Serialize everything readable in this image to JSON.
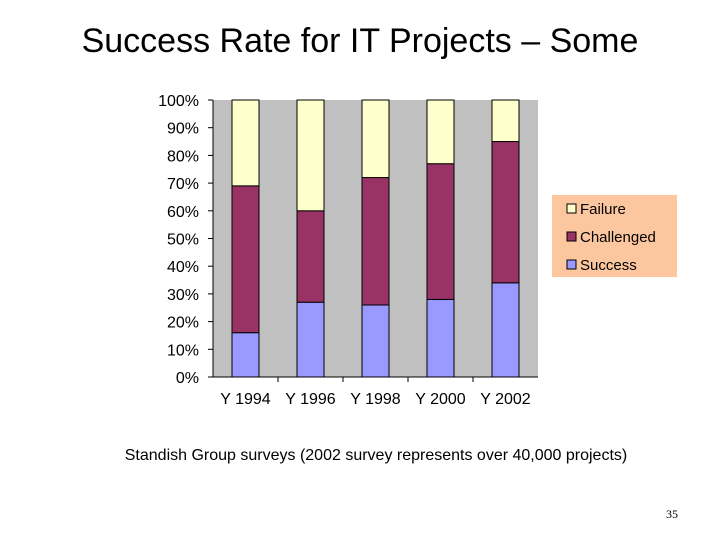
{
  "slide": {
    "title": "Success Rate for IT Projects – Some",
    "caption": "Standish Group surveys (2002 survey represents over 40,000 projects)",
    "page_number": "35"
  },
  "chart_data": {
    "type": "bar",
    "stacked": true,
    "normalized": true,
    "categories": [
      "Y 1994",
      "Y 1996",
      "Y 1998",
      "Y 2000",
      "Y 2002"
    ],
    "series": [
      {
        "name": "Success",
        "values": [
          16,
          27,
          26,
          28,
          34
        ],
        "color": "#9999ff"
      },
      {
        "name": "Challenged",
        "values": [
          53,
          33,
          46,
          49,
          51
        ],
        "color": "#993366"
      },
      {
        "name": "Failure",
        "values": [
          31,
          40,
          28,
          23,
          15
        ],
        "color": "#ffffcc"
      }
    ],
    "y_ticks": [
      "0%",
      "10%",
      "20%",
      "30%",
      "40%",
      "50%",
      "60%",
      "70%",
      "80%",
      "90%",
      "100%"
    ],
    "ylim": [
      0,
      100
    ],
    "plot_background": "#c0c0c0",
    "legend_background": "#fcc79f",
    "legend_order": [
      "Failure",
      "Challenged",
      "Success"
    ],
    "legend_position": "right",
    "grid": false
  }
}
